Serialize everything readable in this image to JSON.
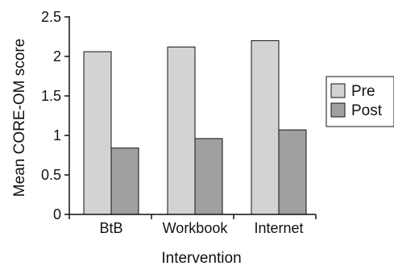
{
  "chart_data": {
    "type": "bar",
    "categories": [
      "BtB",
      "Workbook",
      "Internet"
    ],
    "series": [
      {
        "name": "Pre",
        "values": [
          2.06,
          2.12,
          2.2
        ],
        "color": "#d3d3d3"
      },
      {
        "name": "Post",
        "values": [
          0.84,
          0.96,
          1.07
        ],
        "color": "#a0a0a0"
      }
    ],
    "xlabel": "Intervention",
    "ylabel": "Mean CORE-OM score",
    "ylim": [
      0,
      2.5
    ],
    "yticks": [
      "0",
      "0.5",
      "1",
      "1.5",
      "2",
      "2.5"
    ],
    "grid": false,
    "legend_position": "right"
  }
}
